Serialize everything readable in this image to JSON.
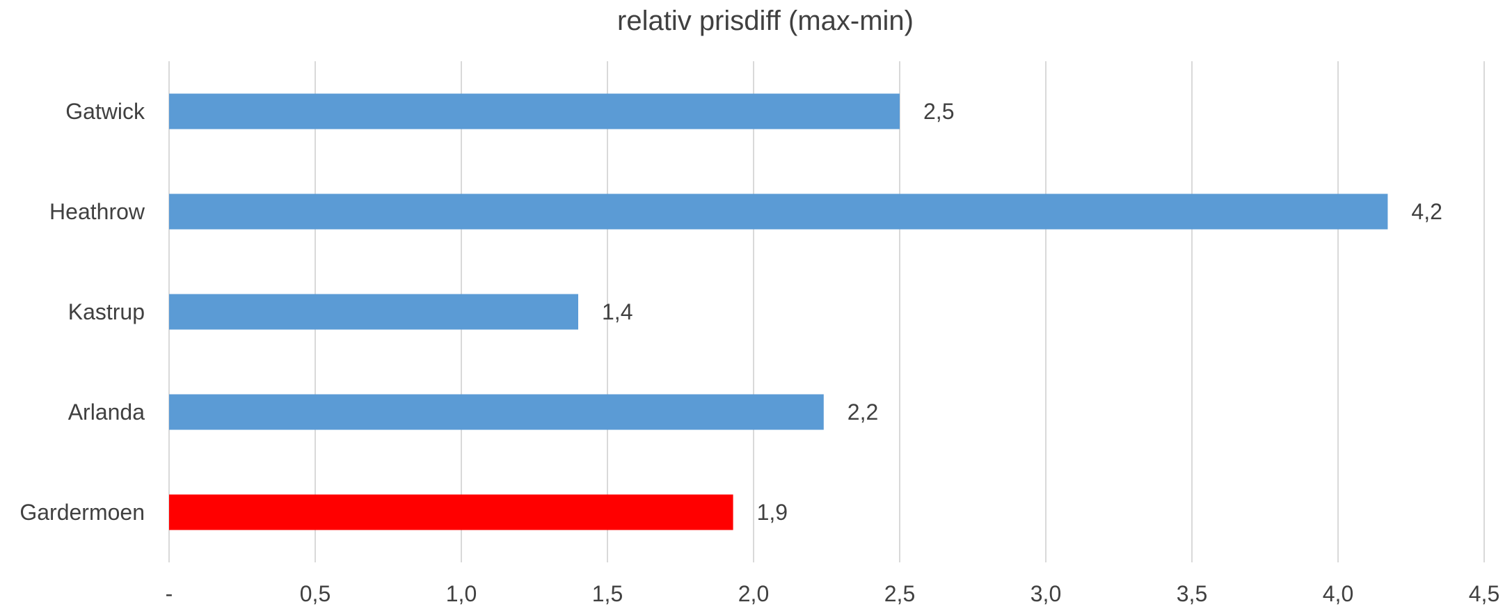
{
  "chart_data": {
    "type": "bar",
    "orientation": "horizontal",
    "title": "relativ prisdiff (max-min)",
    "xlabel": "",
    "ylabel": "",
    "categories": [
      "Gatwick",
      "Heathrow",
      "Kastrup",
      "Arlanda",
      "Gardermoen"
    ],
    "values": [
      2.5,
      4.17,
      1.4,
      2.24,
      1.93
    ],
    "data_labels": [
      "2,5",
      "4,2",
      "1,4",
      "2,2",
      "1,9"
    ],
    "bar_colors": [
      "#5B9BD5",
      "#5B9BD5",
      "#5B9BD5",
      "#5B9BD5",
      "#FF0000"
    ],
    "xlim": [
      0,
      4.5
    ],
    "xticks": [
      0,
      0.5,
      1.0,
      1.5,
      2.0,
      2.5,
      3.0,
      3.5,
      4.0,
      4.5
    ],
    "xtick_labels": [
      "-",
      "0,5",
      "1,0",
      "1,5",
      "2,0",
      "2,5",
      "3,0",
      "3,5",
      "4,0",
      "4,5"
    ],
    "grid": "vertical",
    "legend": "none"
  }
}
